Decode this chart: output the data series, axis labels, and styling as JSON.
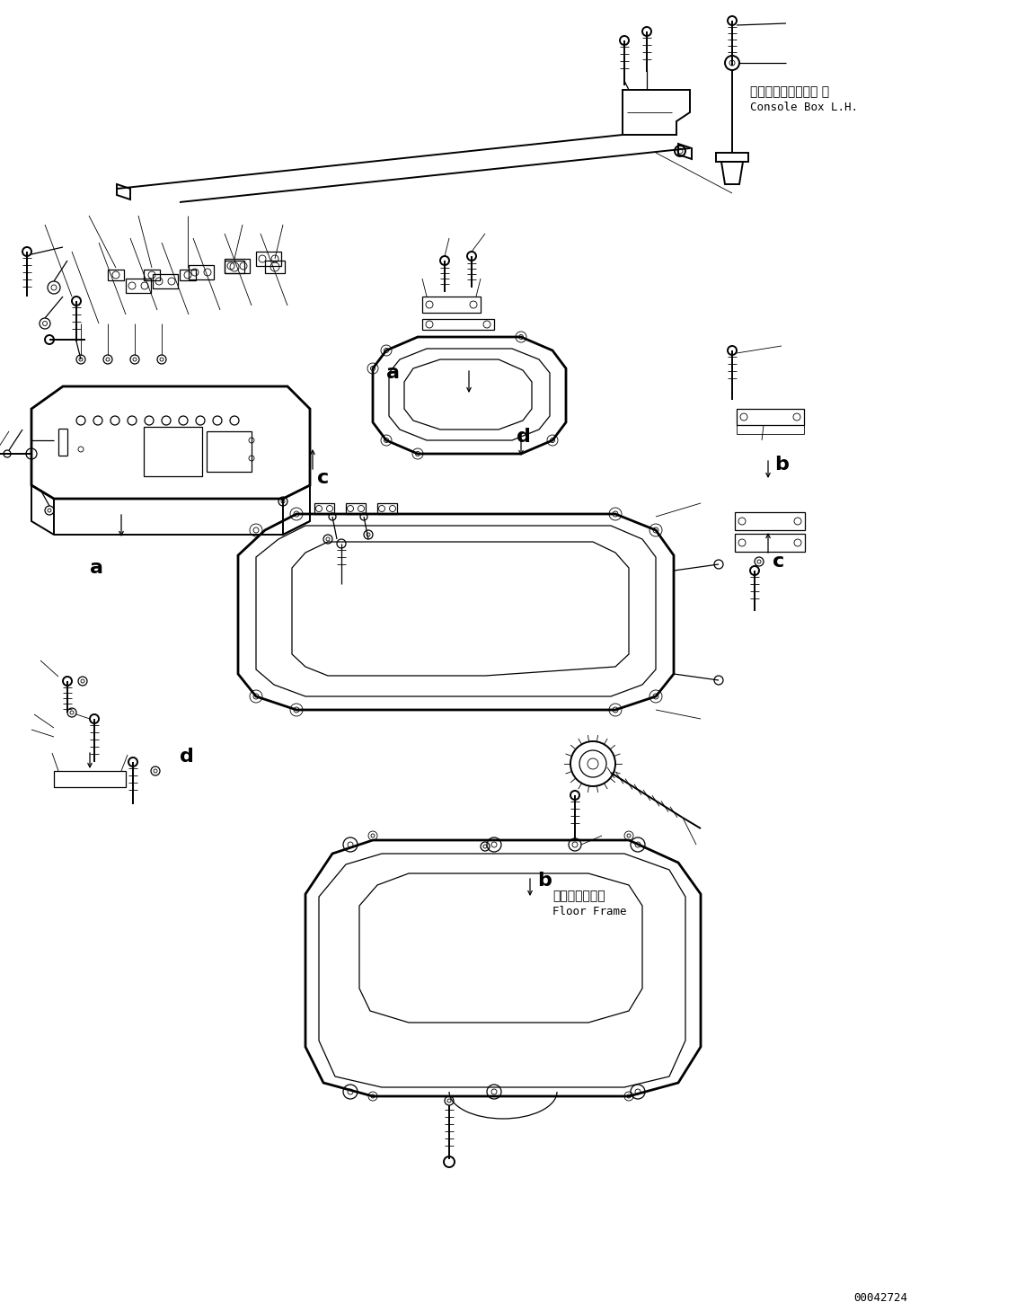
{
  "background_color": "#ffffff",
  "line_color": "#000000",
  "part_number": "00042724",
  "label_console_box_jp": "コンソールボックス 左",
  "label_console_box_en": "Console Box L.H.",
  "label_floor_frame_jp": "フロアフレーム",
  "label_floor_frame_en": "Floor Frame",
  "fig_width": 11.41,
  "fig_height": 14.59,
  "dpi": 100
}
